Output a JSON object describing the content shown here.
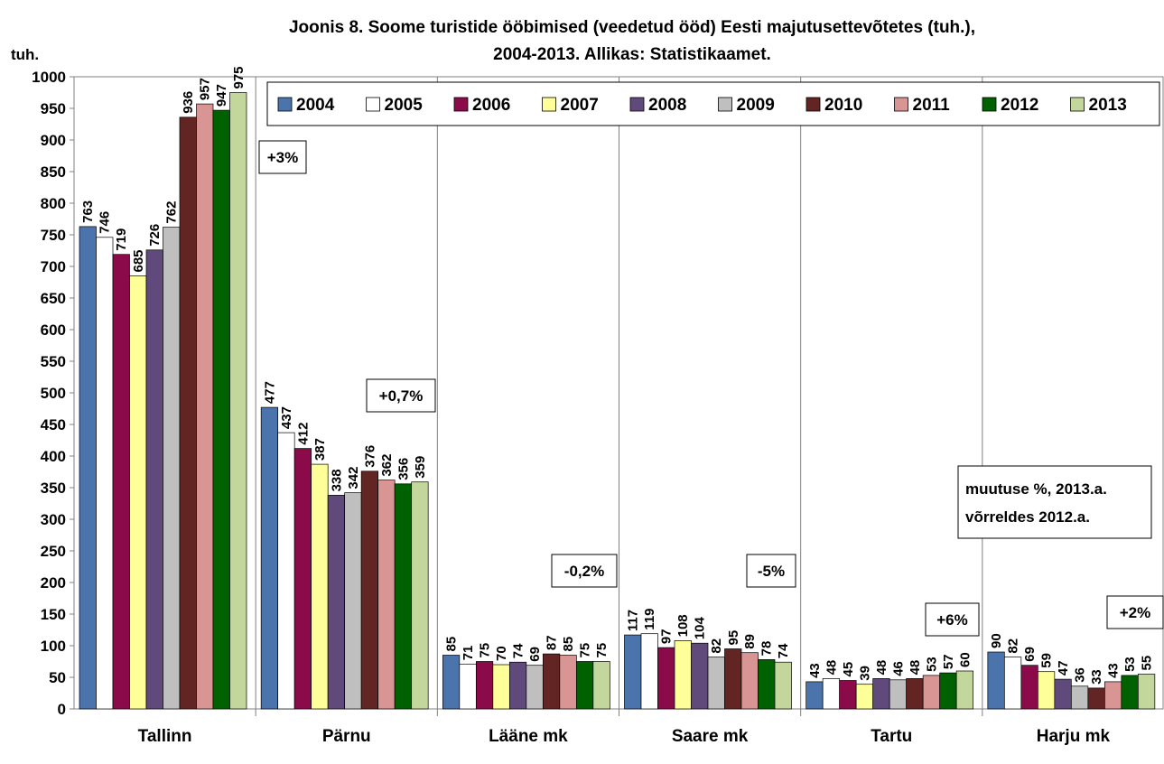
{
  "chart_data": {
    "type": "bar",
    "title_line1": "Joonis 8. Soome turistide ööbimised (veedetud ööd) Eesti majutusettevõtetes (tuh.),",
    "title_line2": "2004-2013. Allikas: Statistikaamet.",
    "ylabel": "tuh.",
    "xlabel": "",
    "ylim": [
      0,
      1000
    ],
    "ytick_step": 50,
    "grid": "vertical-separators",
    "legend_position": "top-right",
    "categories": [
      "Tallinn",
      "Pärnu",
      "Lääne mk",
      "Saare mk",
      "Tartu",
      "Harju mk"
    ],
    "series": [
      {
        "name": "2004",
        "color": "#4a74ab",
        "values": [
          763,
          477,
          85,
          117,
          43,
          90
        ]
      },
      {
        "name": "2005",
        "color": "#ffffff",
        "values": [
          746,
          437,
          71,
          119,
          48,
          82
        ]
      },
      {
        "name": "2006",
        "color": "#8b0a4a",
        "values": [
          719,
          412,
          75,
          97,
          45,
          69
        ]
      },
      {
        "name": "2007",
        "color": "#ffff99",
        "values": [
          685,
          387,
          70,
          108,
          39,
          59
        ]
      },
      {
        "name": "2008",
        "color": "#604a7b",
        "values": [
          726,
          338,
          74,
          104,
          48,
          47
        ]
      },
      {
        "name": "2009",
        "color": "#bfbfbf",
        "values": [
          762,
          342,
          69,
          82,
          46,
          36
        ]
      },
      {
        "name": "2010",
        "color": "#632523",
        "values": [
          936,
          376,
          87,
          95,
          48,
          33
        ]
      },
      {
        "name": "2011",
        "color": "#d99594",
        "values": [
          957,
          362,
          85,
          89,
          53,
          43
        ]
      },
      {
        "name": "2012",
        "color": "#006100",
        "values": [
          947,
          356,
          75,
          78,
          57,
          53
        ]
      },
      {
        "name": "2013",
        "color": "#c3d69b",
        "values": [
          975,
          359,
          75,
          74,
          60,
          55
        ]
      }
    ],
    "change_labels": [
      "+3%",
      "+0,7%",
      "-0,2%",
      "-5%",
      "+6%",
      "+2%"
    ],
    "note_line1": "muutuse %, 2013.a.",
    "note_line2": "võrreldes 2012.a."
  }
}
